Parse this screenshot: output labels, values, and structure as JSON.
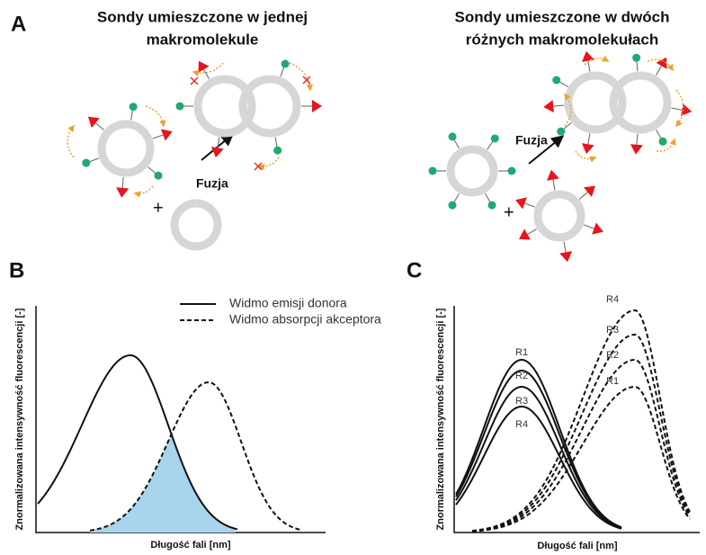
{
  "panel_a": {
    "label": "A",
    "left": {
      "title_lines": [
        "Sondy umieszczone w jednej",
        "makromolekule"
      ],
      "fusion": "Fuzja",
      "plus": "+"
    },
    "right": {
      "title_lines": [
        "Sondy umieszczone w dwóch",
        "różnych makromolekułach"
      ],
      "fusion": "Fuzja",
      "plus": "+"
    }
  },
  "panel_b": {
    "label": "B",
    "legend": [
      "Widmo emisji donora",
      "Widmo absorpcji akceptora"
    ],
    "y_axis_label": "Znormalizowana intensywność fluorescencji [-]",
    "x_axis_label": "Długość fali [nm]"
  },
  "panel_c": {
    "label": "C",
    "donor_curves": [
      "R1",
      "R2",
      "R3",
      "R4"
    ],
    "acceptor_curves": [
      "R4",
      "R3",
      "R2",
      "R1"
    ],
    "y_axis_label": "Znormalizowana intensywność fluorescencji [-]",
    "x_axis_label": "Długość fali [nm]"
  }
}
